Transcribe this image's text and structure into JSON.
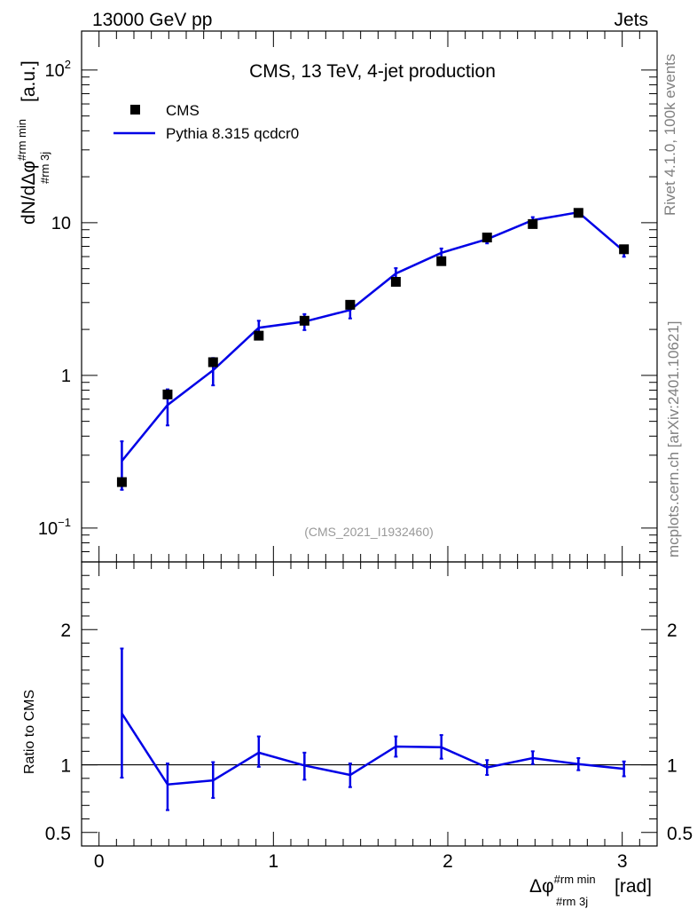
{
  "header": {
    "left": "13000 GeV pp",
    "right": "Jets"
  },
  "side": {
    "rivet": "Rivet 4.1.0,  100k events",
    "mcplots": "mcplots.cern.ch [arXiv:2401.10621]"
  },
  "colors": {
    "mc": "#0000e6",
    "data": "#000000",
    "ref_label": "#999999",
    "side_label": "#808080"
  },
  "chart_data": [
    {
      "type": "scatter",
      "panel": "main",
      "title": "CMS, 13 TeV, 4-jet production",
      "analysis_label": "(CMS_2021_I1932460)",
      "ylabel": "dN/dΔφ#rm min#rm 3j [a.u.]",
      "ylabel_parts": {
        "main": "dN/dΔφ",
        "sup": "#rm min",
        "sub": "#rm 3j",
        "unit": "[a.u.]"
      },
      "yscale": "log",
      "xlim": [
        -0.1,
        3.2
      ],
      "ylim": [
        0.06,
        180
      ],
      "yticks": [
        {
          "value": 0.1,
          "base": "10",
          "exp": "−1"
        },
        {
          "value": 1,
          "base": "1",
          "exp": ""
        },
        {
          "value": 10,
          "base": "10",
          "exp": ""
        },
        {
          "value": 100,
          "base": "10",
          "exp": "2"
        }
      ],
      "legend": {
        "position": "top-left",
        "entries": [
          "CMS",
          "Pythia 8.315 qcdcr0"
        ]
      },
      "x": [
        0.131,
        0.393,
        0.654,
        0.916,
        1.178,
        1.44,
        1.702,
        1.963,
        2.225,
        2.487,
        2.749,
        3.01
      ],
      "series": [
        {
          "name": "CMS",
          "style": "marker",
          "values": [
            0.2,
            0.75,
            1.22,
            1.82,
            2.28,
            2.9,
            4.1,
            5.6,
            8.0,
            9.8,
            11.6,
            6.7
          ]
        },
        {
          "name": "Pythia 8.315 qcdcr0",
          "style": "line",
          "values": [
            0.275,
            0.64,
            1.08,
            2.05,
            2.25,
            2.68,
            4.65,
            6.35,
            7.8,
            10.4,
            11.7,
            6.5
          ],
          "err_low": [
            0.178,
            0.47,
            0.86,
            1.84,
            1.98,
            2.36,
            4.26,
            5.92,
            7.32,
            9.92,
            11.35,
            5.98
          ],
          "err_high": [
            0.37,
            0.81,
            1.3,
            2.28,
            2.52,
            3.0,
            5.04,
            6.78,
            8.28,
            10.88,
            12.05,
            7.02
          ]
        }
      ]
    },
    {
      "type": "line",
      "panel": "ratio",
      "ylabel": "Ratio to CMS",
      "xlabel": "Δφ#rm min#rm 3j [rad]",
      "xlabel_parts": {
        "main": "Δφ",
        "sup": "#rm min",
        "sub": "#rm 3j",
        "unit": "[rad]"
      },
      "xlim": [
        -0.1,
        3.2
      ],
      "ylim": [
        0.4,
        2.5
      ],
      "xticks": [
        {
          "value": 0,
          "label": "0"
        },
        {
          "value": 1,
          "label": "1"
        },
        {
          "value": 2,
          "label": "2"
        },
        {
          "value": 3,
          "label": "3"
        }
      ],
      "yticks": [
        {
          "value": 0.5,
          "label": "0.5"
        },
        {
          "value": 1,
          "label": "1"
        },
        {
          "value": 2,
          "label": "2"
        }
      ],
      "reference": 1,
      "x": [
        0.131,
        0.393,
        0.654,
        0.916,
        1.178,
        1.44,
        1.702,
        1.963,
        2.225,
        2.487,
        2.749,
        3.01
      ],
      "series": [
        {
          "name": "Pythia 8.315 qcdcr0 / CMS",
          "values": [
            1.38,
            0.855,
            0.885,
            1.09,
            0.995,
            0.925,
            1.135,
            1.13,
            0.98,
            1.05,
            1.005,
            0.97
          ],
          "err_low": [
            0.905,
            0.665,
            0.755,
            0.985,
            0.89,
            0.835,
            1.06,
            1.045,
            0.925,
            1.005,
            0.96,
            0.915
          ],
          "err_high": [
            1.86,
            1.01,
            1.02,
            1.21,
            1.09,
            1.01,
            1.21,
            1.22,
            1.035,
            1.1,
            1.05,
            1.025
          ]
        }
      ]
    }
  ]
}
